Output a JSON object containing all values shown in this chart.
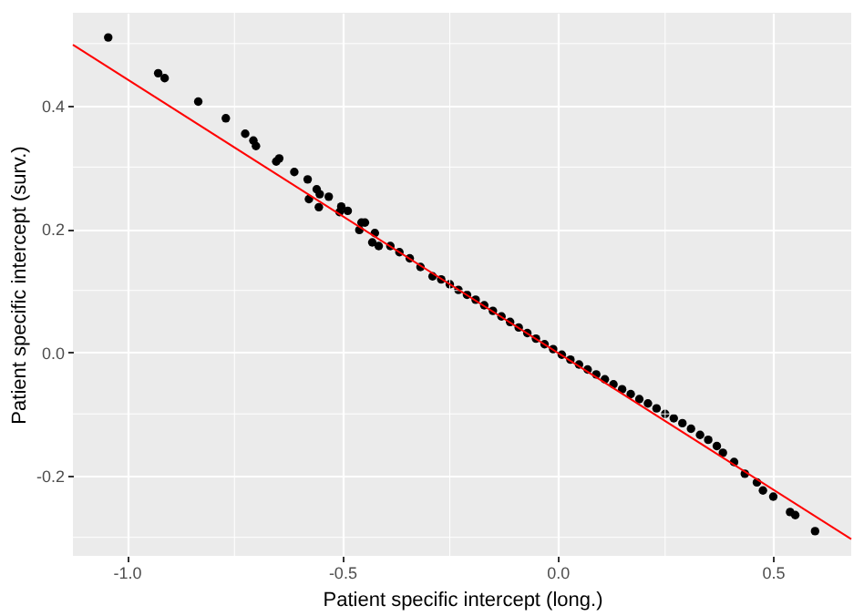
{
  "chart_data": {
    "type": "scatter",
    "xlabel": "Patient specific intercept (long.)",
    "ylabel": "Patient specific intercept (surv.)",
    "xlim": [
      -1.125,
      0.682
    ],
    "ylim": [
      -0.33,
      0.55
    ],
    "xticks": [
      {
        "value": -1.0,
        "label": "-1.0"
      },
      {
        "value": -0.75,
        "label": null
      },
      -0.5,
      {
        "value": -0.25,
        "label": null
      },
      {
        "value": 0.0,
        "label": "0.0"
      },
      {
        "value": 0.25,
        "label": null
      },
      0.5
    ],
    "yticks": [
      {
        "value": -0.3,
        "label": null
      },
      -0.2,
      {
        "value": -0.1,
        "label": null
      },
      {
        "value": 0.0,
        "label": "0.0"
      },
      {
        "value": 0.1,
        "label": null
      },
      0.2,
      {
        "value": 0.3,
        "label": null
      },
      0.4,
      {
        "value": 0.5,
        "label": null
      }
    ],
    "grid": true,
    "series": [
      {
        "color": "#000000",
        "marker": "circle",
        "x": [
          -1.043,
          -0.927,
          -0.912,
          -0.834,
          -0.77,
          -0.725,
          -0.706,
          -0.7,
          -0.653,
          -0.646,
          -0.611,
          -0.58,
          -0.577,
          -0.559,
          -0.552,
          -0.554,
          -0.531,
          -0.506,
          -0.502,
          -0.487,
          -0.455,
          -0.447,
          -0.46,
          -0.424,
          -0.43,
          -0.415,
          -0.388,
          -0.367,
          -0.343,
          -0.318,
          -0.29,
          -0.27,
          -0.25,
          -0.23,
          -0.21,
          -0.19,
          -0.17,
          -0.15,
          -0.13,
          -0.11,
          -0.09,
          -0.07,
          -0.05,
          -0.03,
          -0.01,
          0.01,
          0.03,
          0.05,
          0.07,
          0.09,
          0.11,
          0.13,
          0.15,
          0.17,
          0.19,
          0.21,
          0.23,
          0.25,
          0.27,
          0.29,
          0.31,
          0.331,
          0.35,
          0.37,
          0.384,
          0.41,
          0.435,
          0.463,
          0.477,
          0.501,
          0.54,
          0.552,
          0.598
        ],
        "values": [
          0.51,
          0.452,
          0.444,
          0.406,
          0.379,
          0.354,
          0.343,
          0.334,
          0.309,
          0.314,
          0.292,
          0.28,
          0.248,
          0.264,
          0.256,
          0.235,
          0.252,
          0.227,
          0.236,
          0.229,
          0.21,
          0.21,
          0.198,
          0.193,
          0.178,
          0.172,
          0.172,
          0.162,
          0.152,
          0.138,
          0.123,
          0.118,
          0.11,
          0.101,
          0.093,
          0.085,
          0.076,
          0.067,
          0.058,
          0.049,
          0.04,
          0.031,
          0.022,
          0.013,
          0.005,
          -0.004,
          -0.012,
          -0.02,
          -0.028,
          -0.036,
          -0.044,
          -0.052,
          -0.06,
          -0.068,
          -0.076,
          -0.083,
          -0.091,
          -0.1,
          -0.107,
          -0.115,
          -0.124,
          -0.134,
          -0.142,
          -0.152,
          -0.163,
          -0.178,
          -0.197,
          -0.211,
          -0.224,
          -0.234,
          -0.259,
          -0.264,
          -0.29
        ]
      },
      {
        "type": "line",
        "color": "#ff0000",
        "x": [
          -1.125,
          0.682
        ],
        "values": [
          0.498,
          -0.303
        ]
      }
    ]
  }
}
